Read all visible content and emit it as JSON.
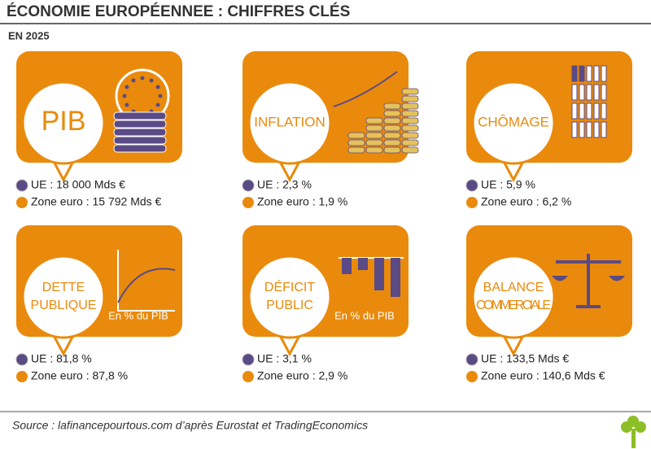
{
  "header": {
    "title": "ÉCONOMIE EUROPÉENNEE : CHIFFRES CLÉS",
    "subtitle": "EN 2025"
  },
  "cards": [
    {
      "label": [
        "PIB"
      ],
      "ue": "UE : 18 000 Mds €",
      "zone": "Zone euro : 15 792 Mds €"
    },
    {
      "label": [
        "INFLATION"
      ],
      "ue": "UE : 2,3 %",
      "zone": "Zone euro : 1,9 %"
    },
    {
      "label": [
        "CHÔMAGE"
      ],
      "ue": "UE : 5,9 %",
      "zone": "Zone euro : 6,2 %"
    },
    {
      "label": [
        "DETTE",
        "PUBLIQUE"
      ],
      "note": "En % du PIB",
      "ue": "UE : 81,8 %",
      "zone": "Zone euro : 87,8 %"
    },
    {
      "label": [
        "DÉFICIT",
        "PUBLIC"
      ],
      "note": "En % du PIB",
      "ue": "UE : 3,1 %",
      "zone": "Zone euro : 2,9 %"
    },
    {
      "label": [
        "BALANCE",
        "COMMERCIALE"
      ],
      "ue": "UE : 133,5 Mds €",
      "zone": "Zone euro : 140,6 Mds €"
    }
  ],
  "footer": {
    "source": "Source : lafinancepourtous.com d’après Eurostat et TradingEconomics"
  }
}
